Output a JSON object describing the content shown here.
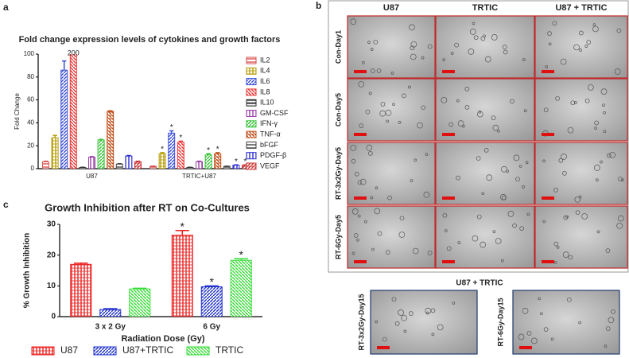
{
  "panel_labels": [
    "a",
    "b",
    "c"
  ],
  "chart_data": [
    {
      "type": "bar",
      "title": "Fold change expression levels of cytokines and growth factors",
      "ylabel": "Fold Change",
      "categories": [
        "U87",
        "TRTIC+U87"
      ],
      "ylim": [
        0,
        100
      ],
      "yticks": [
        0,
        20,
        40,
        60,
        80,
        100
      ],
      "legend": "right",
      "series": [
        {
          "name": "IL2",
          "color": "#d9534f",
          "values": [
            6,
            2
          ],
          "errors": [
            0.5,
            0.3
          ]
        },
        {
          "name": "IL4",
          "color": "#b59a00",
          "values": [
            27,
            13
          ],
          "errors": [
            2,
            1
          ],
          "significance": [
            null,
            "*"
          ]
        },
        {
          "name": "IL6",
          "color": "#3b4fd8",
          "values": [
            86,
            31
          ],
          "errors": [
            8,
            2
          ],
          "significance": [
            null,
            "*"
          ]
        },
        {
          "name": "IL8",
          "color": "#ee3333",
          "values": [
            200,
            23
          ],
          "errors": [
            0,
            1
          ],
          "value_labels": [
            "200",
            null
          ],
          "significance": [
            null,
            "*"
          ]
        },
        {
          "name": "IL10",
          "color": "#333333",
          "values": [
            1,
            1
          ],
          "errors": [
            0.2,
            0.2
          ]
        },
        {
          "name": "GM-CSF",
          "color": "#9b3fa8",
          "values": [
            10,
            6
          ],
          "errors": [
            0.5,
            0.5
          ]
        },
        {
          "name": "IFN-γ",
          "color": "#33c233",
          "values": [
            25,
            12
          ],
          "errors": [
            0.5,
            1
          ],
          "significance": [
            null,
            "*"
          ]
        },
        {
          "name": "TNF-α",
          "color": "#c0501c",
          "values": [
            50,
            13
          ],
          "errors": [
            0.5,
            1
          ],
          "significance": [
            null,
            "*"
          ]
        },
        {
          "name": "bFGF",
          "color": "#444444",
          "values": [
            4,
            2
          ],
          "errors": [
            0.3,
            0.2
          ]
        },
        {
          "name": "PDGF-β",
          "color": "#2a2ad0",
          "values": [
            11,
            3
          ],
          "errors": [
            0.5,
            0.3
          ],
          "significance": [
            null,
            "*"
          ]
        },
        {
          "name": "VEGF",
          "color": "#cc3333",
          "values": [
            6,
            3
          ],
          "errors": [
            0.5,
            0.3
          ],
          "significance": [
            null,
            "*"
          ]
        }
      ]
    },
    {
      "type": "bar",
      "title": "Growth Inhibition after RT on Co-Cultures",
      "ylabel": "% Growth Inhibition",
      "xlabel": "Radiation Dose (Gy)",
      "categories": [
        "3 x 2 Gy",
        "6 Gy"
      ],
      "ylim": [
        0,
        30
      ],
      "yticks": [
        0,
        10,
        20,
        30
      ],
      "legend": "bottom",
      "series": [
        {
          "name": "U87",
          "color": "#ee2222",
          "values": [
            17,
            26.5
          ],
          "errors": [
            0.4,
            1.5
          ],
          "significance": [
            null,
            "*"
          ]
        },
        {
          "name": "U87+TRTIC",
          "color": "#2233cc",
          "values": [
            2.3,
            9.7
          ],
          "errors": [
            0.3,
            0.3
          ],
          "significance": [
            null,
            "*"
          ]
        },
        {
          "name": "TRTIC",
          "color": "#33dd33",
          "values": [
            9,
            18.3
          ],
          "errors": [
            0.2,
            0.5
          ],
          "significance": [
            null,
            "*"
          ]
        }
      ]
    }
  ],
  "panel_b": {
    "columns": [
      "U87",
      "TRTIC",
      "U87 + TRTIC"
    ],
    "rows": [
      "Con-Day1",
      "Con-Day5",
      "RT-3x2Gy-Day5",
      "RT-6Gy-Day5"
    ],
    "bottom_title": "U87 + TRTIC",
    "bottom_rows": [
      "RT-3x2Gy-Day15",
      "RT-6Gy-Day15"
    ]
  }
}
